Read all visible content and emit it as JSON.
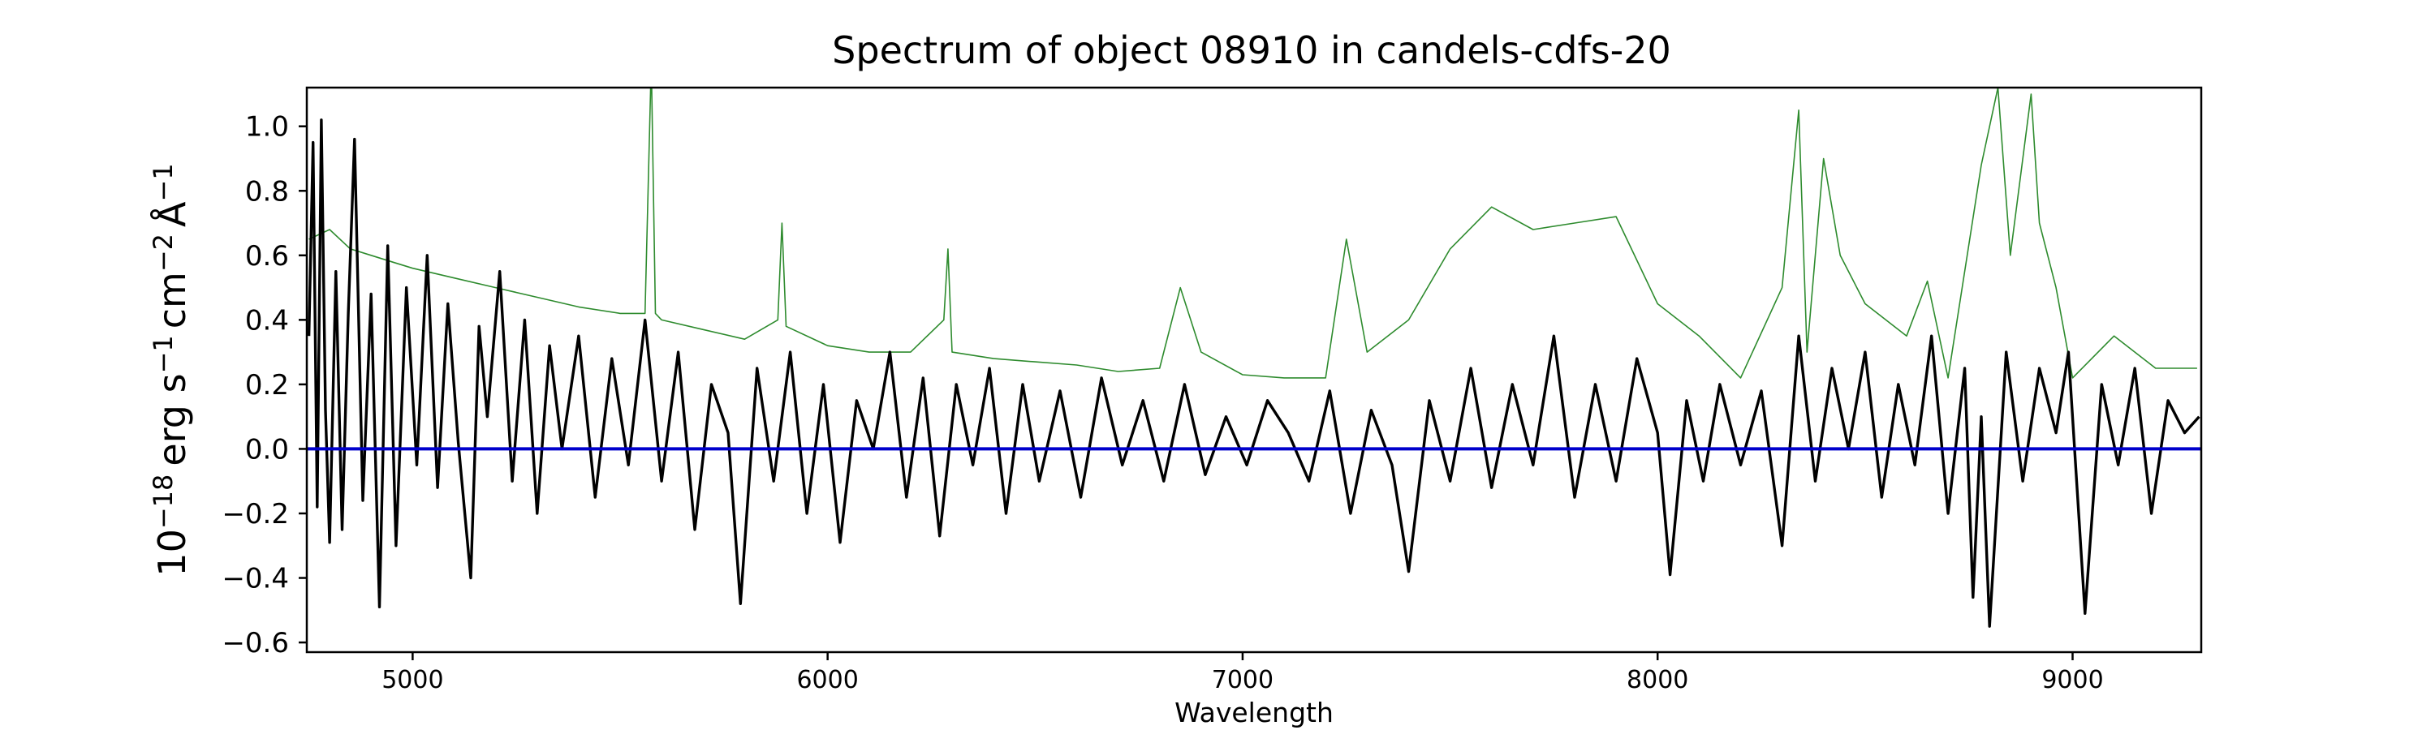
{
  "chart_data": {
    "type": "line",
    "title": "Spectrum of object 08910 in candels-cdfs-20",
    "xlabel": "Wavelength",
    "ylabel": {
      "base": "10",
      "base_exp": "−18",
      "erg": "erg s",
      "s_exp": "−1",
      "cm": "cm",
      "cm_exp": "−2",
      "ang": "Å",
      "ang_exp": "−1"
    },
    "xlim": [
      4745,
      9310
    ],
    "ylim": [
      -0.63,
      1.12
    ],
    "x_ticks": [
      5000,
      6000,
      7000,
      8000,
      9000
    ],
    "x_tick_labels": [
      "5000",
      "6000",
      "7000",
      "8000",
      "9000"
    ],
    "y_ticks": [
      -0.6,
      -0.4,
      -0.2,
      0.0,
      0.2,
      0.4,
      0.6,
      0.8,
      1.0
    ],
    "y_tick_labels": [
      "−0.6",
      "−0.4",
      "−0.2",
      "0.0",
      "0.2",
      "0.4",
      "0.6",
      "0.8",
      "1.0"
    ],
    "grid": false,
    "series": [
      {
        "role": "flux",
        "color": "#000000",
        "x": [
          4750,
          4760,
          4770,
          4780,
          4790,
          4800,
          4815,
          4830,
          4845,
          4860,
          4880,
          4900,
          4920,
          4940,
          4960,
          4985,
          5010,
          5035,
          5060,
          5085,
          5110,
          5140,
          5160,
          5180,
          5210,
          5240,
          5270,
          5300,
          5330,
          5360,
          5400,
          5440,
          5480,
          5520,
          5560,
          5600,
          5640,
          5680,
          5720,
          5760,
          5790,
          5830,
          5870,
          5910,
          5950,
          5990,
          6030,
          6070,
          6110,
          6150,
          6190,
          6230,
          6270,
          6310,
          6350,
          6390,
          6430,
          6470,
          6510,
          6560,
          6610,
          6660,
          6710,
          6760,
          6810,
          6860,
          6910,
          6960,
          7010,
          7060,
          7110,
          7160,
          7210,
          7260,
          7310,
          7360,
          7400,
          7450,
          7500,
          7550,
          7600,
          7650,
          7700,
          7750,
          7800,
          7850,
          7900,
          7950,
          8000,
          8030,
          8070,
          8110,
          8150,
          8200,
          8250,
          8300,
          8340,
          8380,
          8420,
          8460,
          8500,
          8540,
          8580,
          8620,
          8660,
          8700,
          8740,
          8760,
          8780,
          8800,
          8840,
          8880,
          8920,
          8960,
          8990,
          9030,
          9070,
          9110,
          9150,
          9190,
          9230,
          9270,
          9305
        ],
        "y": [
          0.35,
          0.95,
          -0.18,
          1.02,
          0.12,
          -0.29,
          0.55,
          -0.25,
          0.42,
          0.96,
          -0.16,
          0.48,
          -0.49,
          0.63,
          -0.3,
          0.5,
          -0.05,
          0.6,
          -0.12,
          0.45,
          0.02,
          -0.4,
          0.38,
          0.1,
          0.55,
          -0.1,
          0.4,
          -0.2,
          0.32,
          0.0,
          0.35,
          -0.15,
          0.28,
          -0.05,
          0.4,
          -0.1,
          0.3,
          -0.25,
          0.2,
          0.05,
          -0.48,
          0.25,
          -0.1,
          0.3,
          -0.2,
          0.2,
          -0.29,
          0.15,
          0.0,
          0.3,
          -0.15,
          0.22,
          -0.27,
          0.2,
          -0.05,
          0.25,
          -0.2,
          0.2,
          -0.1,
          0.18,
          -0.15,
          0.22,
          -0.05,
          0.15,
          -0.1,
          0.2,
          -0.08,
          0.1,
          -0.05,
          0.15,
          0.05,
          -0.1,
          0.18,
          -0.2,
          0.12,
          -0.05,
          -0.38,
          0.15,
          -0.1,
          0.25,
          -0.12,
          0.2,
          -0.05,
          0.35,
          -0.15,
          0.2,
          -0.1,
          0.28,
          0.05,
          -0.39,
          0.15,
          -0.1,
          0.2,
          -0.05,
          0.18,
          -0.3,
          0.35,
          -0.1,
          0.25,
          0.0,
          0.3,
          -0.15,
          0.2,
          -0.05,
          0.35,
          -0.2,
          0.25,
          -0.46,
          0.1,
          -0.55,
          0.3,
          -0.1,
          0.25,
          0.05,
          0.3,
          -0.51,
          0.2,
          -0.05,
          0.25,
          -0.2,
          0.15,
          0.05,
          0.1
        ]
      },
      {
        "role": "error",
        "color": "#2e8b2e",
        "x": [
          4750,
          4800,
          4850,
          4900,
          4950,
          5000,
          5100,
          5200,
          5300,
          5400,
          5500,
          5560,
          5575,
          5585,
          5600,
          5700,
          5800,
          5880,
          5890,
          5900,
          6000,
          6100,
          6200,
          6280,
          6290,
          6300,
          6400,
          6500,
          6600,
          6700,
          6800,
          6850,
          6900,
          7000,
          7100,
          7200,
          7250,
          7300,
          7400,
          7500,
          7600,
          7700,
          7800,
          7900,
          8000,
          8100,
          8200,
          8300,
          8340,
          8360,
          8400,
          8440,
          8500,
          8600,
          8650,
          8700,
          8780,
          8820,
          8850,
          8900,
          8920,
          8960,
          9000,
          9100,
          9200,
          9300
        ],
        "y": [
          0.65,
          0.68,
          0.62,
          0.6,
          0.58,
          0.56,
          0.53,
          0.5,
          0.47,
          0.44,
          0.42,
          0.42,
          1.2,
          0.42,
          0.4,
          0.37,
          0.34,
          0.4,
          0.7,
          0.38,
          0.32,
          0.3,
          0.3,
          0.4,
          0.62,
          0.3,
          0.28,
          0.27,
          0.26,
          0.24,
          0.25,
          0.5,
          0.3,
          0.23,
          0.22,
          0.22,
          0.65,
          0.3,
          0.4,
          0.62,
          0.75,
          0.68,
          0.7,
          0.72,
          0.45,
          0.35,
          0.22,
          0.5,
          1.05,
          0.3,
          0.9,
          0.6,
          0.45,
          0.35,
          0.52,
          0.22,
          0.88,
          1.12,
          0.6,
          1.1,
          0.7,
          0.5,
          0.22,
          0.35,
          0.25,
          0.25
        ]
      },
      {
        "role": "zero",
        "color": "#0000cc",
        "x": [
          4745,
          9310
        ],
        "y": [
          0.0,
          0.0
        ]
      }
    ]
  }
}
